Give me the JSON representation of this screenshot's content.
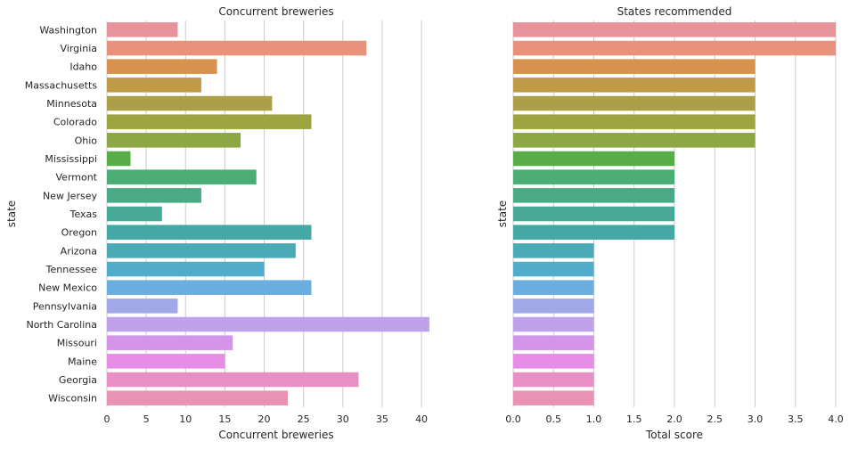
{
  "chart_data": [
    {
      "type": "bar",
      "orientation": "horizontal",
      "title": "Concurrent breweries",
      "xlabel": "Concurrent breweries",
      "ylabel": "state",
      "categories": [
        "Washington",
        "Virginia",
        "Idaho",
        "Massachusetts",
        "Minnesota",
        "Colorado",
        "Ohio",
        "Mississippi",
        "Vermont",
        "New Jersey",
        "Texas",
        "Oregon",
        "Arizona",
        "Tennessee",
        "New Mexico",
        "Pennsylvania",
        "North Carolina",
        "Missouri",
        "Maine",
        "Georgia",
        "Wisconsin"
      ],
      "values": [
        9,
        33,
        14,
        12,
        21,
        26,
        17,
        3,
        19,
        12,
        7,
        26,
        24,
        20,
        26,
        9,
        41,
        16,
        15,
        32,
        23
      ],
      "xlim": [
        0,
        43.05
      ],
      "xticks": [
        "0",
        "5",
        "10",
        "15",
        "20",
        "25",
        "30",
        "35",
        "40"
      ],
      "grid": "vertical",
      "show_category_labels": true
    },
    {
      "type": "bar",
      "orientation": "horizontal",
      "title": "States recommended",
      "xlabel": "Total score",
      "ylabel": "state",
      "categories": [
        "Washington",
        "Virginia",
        "Idaho",
        "Massachusetts",
        "Minnesota",
        "Colorado",
        "Ohio",
        "Mississippi",
        "Vermont",
        "New Jersey",
        "Texas",
        "Oregon",
        "Arizona",
        "Tennessee",
        "New Mexico",
        "Pennsylvania",
        "North Carolina",
        "Missouri",
        "Maine",
        "Georgia",
        "Wisconsin"
      ],
      "values": [
        4,
        4,
        3,
        3,
        3,
        3,
        3,
        2,
        2,
        2,
        2,
        2,
        1,
        1,
        1,
        1,
        1,
        1,
        1,
        1,
        1
      ],
      "xlim": [
        0,
        4.0
      ],
      "xticks": [
        "0.0",
        "0.5",
        "1.0",
        "1.5",
        "2.0",
        "2.5",
        "3.0",
        "3.5",
        "4.0"
      ],
      "grid": "vertical",
      "show_category_labels": false
    }
  ],
  "colors": [
    "#e8929c",
    "#e8927b",
    "#d99150",
    "#bf9a47",
    "#ad9e48",
    "#9da43f",
    "#8ba844",
    "#58ad48",
    "#48ae73",
    "#48ab85",
    "#46aa96",
    "#46a8a4",
    "#4aabb7",
    "#51acca",
    "#6aaedf",
    "#a0a8ea",
    "#bfa2ea",
    "#d395e8",
    "#e88de6",
    "#e890c6",
    "#e892b4"
  ]
}
